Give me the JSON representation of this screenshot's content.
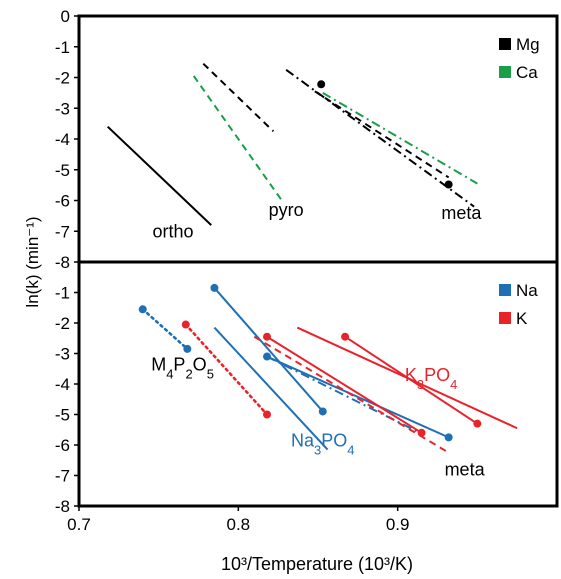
{
  "chart_data": {
    "type": "line",
    "xlabel": "10³/Temperature (10³/K)",
    "ylabel": "ln(k) (min⁻¹)",
    "xlim": [
      0.7,
      1.0
    ],
    "x_ticks": [
      "0.7",
      "0.8",
      "0.9"
    ],
    "grid": false,
    "panels": [
      {
        "ylim": [
          -8,
          0
        ],
        "y_ticks": [
          "0",
          "-1",
          "-2",
          "-3",
          "-4",
          "-5",
          "-6",
          "-7",
          "-8"
        ],
        "legend": {
          "position": "top-right",
          "entries": [
            {
              "label": "Mg",
              "color": "#000000"
            },
            {
              "label": "Ca",
              "color": "#1a9e48"
            }
          ]
        },
        "series": [
          {
            "group": "ortho",
            "element": "Mg",
            "color": "#000000",
            "dash": "solid",
            "markers": false,
            "points": [
              [
                0.718,
                -3.6
              ],
              [
                0.783,
                -6.8
              ]
            ]
          },
          {
            "group": "pyro",
            "element": "Mg",
            "color": "#000000",
            "dash": "dashed",
            "markers": false,
            "points": [
              [
                0.778,
                -1.55
              ],
              [
                0.822,
                -3.75
              ]
            ]
          },
          {
            "group": "pyro",
            "element": "Ca",
            "color": "#1a9e48",
            "dash": "dashed",
            "markers": false,
            "points": [
              [
                0.772,
                -1.95
              ],
              [
                0.828,
                -6.05
              ]
            ]
          },
          {
            "group": "meta",
            "element": "Mg",
            "color": "#000000",
            "dash": "dashdot",
            "markers": false,
            "points": [
              [
                0.83,
                -1.75
              ],
              [
                0.948,
                -6.2
              ]
            ]
          },
          {
            "group": "meta",
            "element": "Mg",
            "color": "#000000",
            "dash": "dashed",
            "markers": false,
            "points": [
              [
                0.848,
                -2.45
              ],
              [
                0.932,
                -5.25
              ]
            ]
          },
          {
            "group": "meta",
            "element": "Mg",
            "color": "#000000",
            "dash": "none",
            "markers": true,
            "points": [
              [
                0.852,
                -2.22
              ],
              [
                0.932,
                -5.48
              ]
            ]
          },
          {
            "group": "meta",
            "element": "Ca",
            "color": "#1a9e48",
            "dash": "dashdot",
            "markers": false,
            "points": [
              [
                0.853,
                -2.5
              ],
              [
                0.95,
                -5.45
              ]
            ]
          }
        ],
        "annotations": [
          {
            "text": "ortho",
            "x": 0.759,
            "y": -7.2,
            "color": "#000000"
          },
          {
            "text": "pyro",
            "x": 0.83,
            "y": -6.5,
            "color": "#000000"
          },
          {
            "text": "meta",
            "x": 0.94,
            "y": -6.6,
            "color": "#000000"
          }
        ]
      },
      {
        "ylim": [
          -8,
          0
        ],
        "y_ticks": [
          "-1",
          "-2",
          "-3",
          "-4",
          "-5",
          "-6",
          "-7",
          "-8"
        ],
        "legend": {
          "position": "top-right",
          "entries": [
            {
              "label": "Na",
              "color": "#1f6fb5"
            },
            {
              "label": "K",
              "color": "#e8242b"
            }
          ]
        },
        "series": [
          {
            "group": "M4P2O5",
            "element": "Na",
            "color": "#1f6fb5",
            "dash": "dotted",
            "markers": true,
            "points": [
              [
                0.74,
                -1.55
              ],
              [
                0.768,
                -2.85
              ]
            ]
          },
          {
            "group": "M4P2O5",
            "element": "K",
            "color": "#e8242b",
            "dash": "dotted",
            "markers": true,
            "points": [
              [
                0.767,
                -2.05
              ],
              [
                0.818,
                -5.0
              ]
            ]
          },
          {
            "group": "Na3PO4",
            "element": "Na",
            "color": "#1f6fb5",
            "dash": "solid",
            "markers": true,
            "points": [
              [
                0.785,
                -0.85
              ],
              [
                0.853,
                -4.9
              ]
            ]
          },
          {
            "group": "Na3PO4",
            "element": "Na",
            "color": "#1f6fb5",
            "dash": "solid",
            "markers": false,
            "points": [
              [
                0.785,
                -2.15
              ],
              [
                0.856,
                -6.15
              ]
            ]
          },
          {
            "group": "K3PO4",
            "element": "K",
            "color": "#e8242b",
            "dash": "solid",
            "markers": true,
            "points": [
              [
                0.867,
                -2.45
              ],
              [
                0.95,
                -5.3
              ]
            ]
          },
          {
            "group": "K3PO4",
            "element": "K",
            "color": "#e8242b",
            "dash": "solid",
            "markers": false,
            "points": [
              [
                0.837,
                -2.15
              ],
              [
                0.975,
                -5.45
              ]
            ]
          },
          {
            "group": "meta",
            "element": "Na",
            "color": "#1f6fb5",
            "dash": "solid",
            "markers": true,
            "points": [
              [
                0.818,
                -3.1
              ],
              [
                0.932,
                -5.75
              ]
            ]
          },
          {
            "group": "meta",
            "element": "Na",
            "color": "#1f6fb5",
            "dash": "dashdot",
            "markers": false,
            "points": [
              [
                0.818,
                -3.1
              ],
              [
                0.912,
                -5.55
              ]
            ]
          },
          {
            "group": "meta",
            "element": "K",
            "color": "#e8242b",
            "dash": "solid",
            "markers": true,
            "points": [
              [
                0.818,
                -2.45
              ],
              [
                0.915,
                -5.6
              ]
            ]
          },
          {
            "group": "meta",
            "element": "K",
            "color": "#e8242b",
            "dash": "dashed",
            "markers": false,
            "points": [
              [
                0.81,
                -2.45
              ],
              [
                0.932,
                -6.25
              ]
            ]
          }
        ],
        "annotations": [
          {
            "text": "M₄P₂O₅",
            "x": 0.765,
            "y": -3.55,
            "color": "#000000"
          },
          {
            "text": "Na₃PO₄",
            "x": 0.853,
            "y": -6.05,
            "color": "#1f6fb5"
          },
          {
            "text": "K₃PO₄",
            "x": 0.921,
            "y": -3.9,
            "color": "#e8242b"
          },
          {
            "text": "meta",
            "x": 0.942,
            "y": -7.0,
            "color": "#000000"
          }
        ]
      }
    ]
  }
}
